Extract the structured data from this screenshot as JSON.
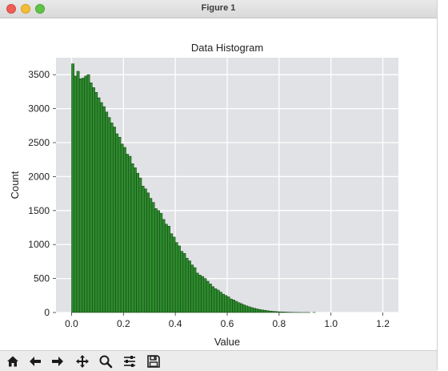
{
  "window": {
    "title": "Figure 1"
  },
  "toolbar": {
    "tools": [
      {
        "name": "home-icon"
      },
      {
        "name": "back-arrow-icon"
      },
      {
        "name": "forward-arrow-icon"
      },
      {
        "name": "pan-icon"
      },
      {
        "name": "zoom-icon"
      },
      {
        "name": "subplots-config-icon"
      },
      {
        "name": "save-icon"
      }
    ]
  },
  "chart_data": {
    "type": "bar",
    "title": "Data Histogram",
    "xlabel": "Value",
    "ylabel": "Count",
    "xlim": [
      -0.06,
      1.26
    ],
    "ylim": [
      0,
      3750
    ],
    "xticks": [
      0.0,
      0.2,
      0.4,
      0.6,
      0.8,
      1.0,
      1.2
    ],
    "xtick_labels": [
      "0.0",
      "0.2",
      "0.4",
      "0.6",
      "0.8",
      "1.0",
      "1.2"
    ],
    "yticks": [
      0,
      500,
      1000,
      1500,
      2000,
      2500,
      3000,
      3500
    ],
    "ytick_labels": [
      "0",
      "500",
      "1000",
      "1500",
      "2000",
      "2500",
      "3000",
      "3500"
    ],
    "grid": true,
    "bar_color": "#2e8b2e",
    "bar_edge_color": "#0f3d0f",
    "background_color": "#e0e2e5",
    "bin_width": 0.01,
    "x_start": 0.0,
    "values": [
      3660,
      3480,
      3550,
      3440,
      3450,
      3480,
      3500,
      3380,
      3310,
      3240,
      3160,
      3090,
      3030,
      2950,
      2870,
      2790,
      2730,
      2630,
      2580,
      2480,
      2430,
      2330,
      2300,
      2190,
      2130,
      2050,
      1980,
      1860,
      1820,
      1760,
      1680,
      1620,
      1530,
      1500,
      1460,
      1370,
      1300,
      1270,
      1160,
      1110,
      1030,
      980,
      900,
      870,
      800,
      760,
      700,
      660,
      580,
      550,
      530,
      500,
      460,
      420,
      380,
      350,
      330,
      300,
      270,
      250,
      230,
      200,
      185,
      165,
      145,
      130,
      112,
      98,
      84,
      72,
      62,
      53,
      45,
      38,
      32,
      27,
      22,
      18,
      15,
      12,
      10,
      8,
      6,
      5,
      4,
      3,
      2,
      2,
      1,
      1,
      1,
      1,
      0,
      1,
      0,
      0,
      0,
      0,
      0,
      0,
      0,
      0,
      0,
      0,
      0,
      0,
      0,
      0,
      0,
      0,
      0,
      0,
      0,
      0,
      0,
      0,
      0,
      0,
      0,
      0,
      0,
      0
    ]
  }
}
